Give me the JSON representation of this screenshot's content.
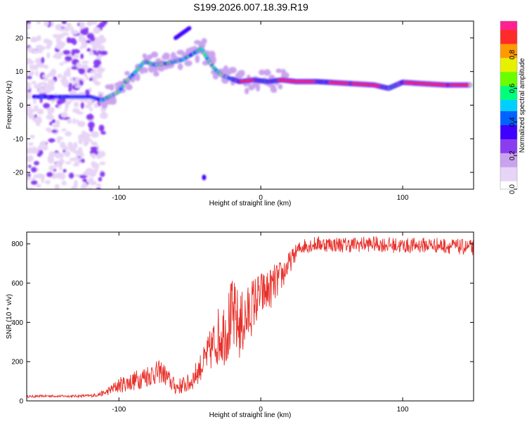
{
  "figure_title": "S199.2026.007.18.39.R19",
  "colors": {
    "line": "#e8302a",
    "axis": "#000000",
    "colormap": [
      "#ffffff",
      "#e7d4f6",
      "#c9a3ee",
      "#8a3df0",
      "#3f00ff",
      "#0062ff",
      "#00d0ff",
      "#00ff7a",
      "#6aff00",
      "#e6f000",
      "#ff9a00",
      "#ff2a2a",
      "#ff2090"
    ]
  },
  "chart_data": [
    {
      "type": "heatmap",
      "title": "S199.2026.007.18.39.R19",
      "xlabel": "Height of straight line (km)",
      "ylabel": "Frequency (Hz)",
      "xlim": [
        -165,
        150
      ],
      "ylim": [
        -25,
        25
      ],
      "xticks": [
        -100,
        0,
        100
      ],
      "yticks": [
        -20,
        -10,
        0,
        10,
        20
      ],
      "grid": false,
      "colorbar": {
        "label": "Normalized spectral amplitude",
        "range": [
          0,
          1
        ],
        "ticks": [
          "0.0",
          "0.2",
          "0.4",
          "0.6",
          "0.8"
        ]
      },
      "ridge": {
        "description": "dominant frequency track",
        "x": [
          -160,
          -140,
          -120,
          -112,
          -100,
          -95,
          -88,
          -82,
          -75,
          -65,
          -55,
          -45,
          -42,
          -38,
          -33,
          -28,
          -22,
          -15,
          -5,
          5,
          15,
          25,
          40,
          60,
          80,
          90,
          100,
          110,
          130,
          148
        ],
        "y": [
          2.5,
          2.5,
          2.5,
          1.5,
          4.0,
          7.0,
          10.0,
          13.0,
          12.0,
          12.5,
          13.5,
          16.0,
          17.0,
          14.0,
          11.0,
          9.0,
          8.0,
          7.0,
          7.5,
          7.0,
          7.5,
          7.0,
          7.0,
          6.5,
          6.0,
          5.0,
          6.8,
          6.5,
          6.0,
          6.0
        ]
      },
      "annotations": {
        "noise_band_x": [
          -165,
          -110
        ],
        "upper_branch": {
          "x": [
            -60,
            -50
          ],
          "y": [
            20,
            23
          ]
        },
        "isolated_blob": {
          "x": -40,
          "y": -21.5
        }
      }
    },
    {
      "type": "line",
      "xlabel": "Height of straight line (km)",
      "ylabel": "SNR (10 * v/v)",
      "xlim": [
        -165,
        150
      ],
      "ylim": [
        0,
        860
      ],
      "xticks": [
        -100,
        0,
        100
      ],
      "yticks": [
        0,
        200,
        400,
        600,
        800
      ],
      "grid": false,
      "series": [
        {
          "name": "SNR",
          "x": [
            -165,
            -150,
            -135,
            -120,
            -110,
            -100,
            -90,
            -80,
            -70,
            -60,
            -50,
            -40,
            -30,
            -25,
            -20,
            -15,
            -10,
            -5,
            0,
            5,
            10,
            15,
            20,
            25,
            30,
            40,
            60,
            80,
            100,
            120,
            150
          ],
          "values": [
            22,
            25,
            24,
            26,
            40,
            80,
            100,
            130,
            150,
            70,
            90,
            200,
            330,
            360,
            430,
            380,
            420,
            500,
            540,
            560,
            600,
            640,
            700,
            760,
            790,
            800,
            795,
            800,
            790,
            795,
            780
          ],
          "fluctuation_amplitude": [
            6,
            6,
            6,
            8,
            15,
            40,
            50,
            60,
            60,
            40,
            50,
            80,
            150,
            180,
            200,
            180,
            160,
            140,
            120,
            110,
            100,
            80,
            60,
            40,
            40,
            40,
            40,
            40,
            40,
            40,
            40
          ]
        }
      ]
    }
  ]
}
